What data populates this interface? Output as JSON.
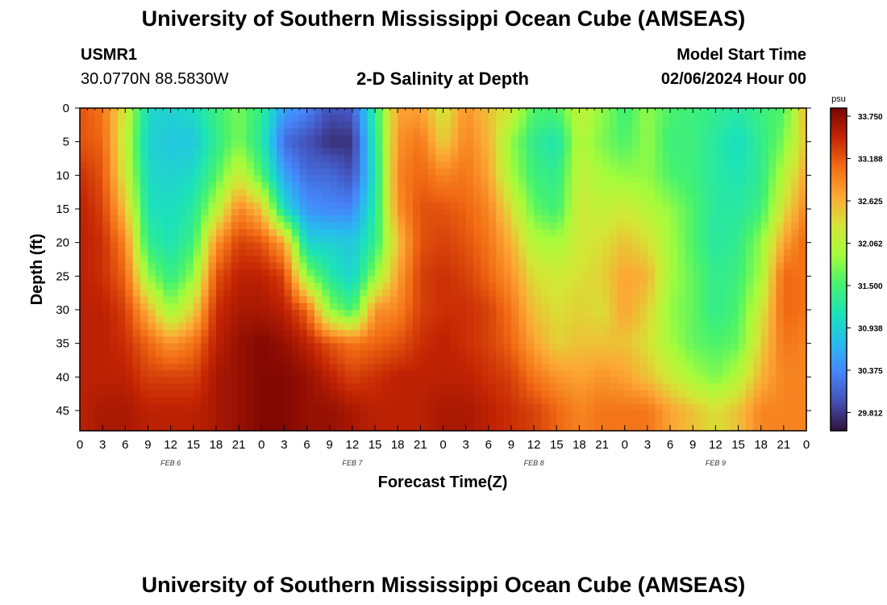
{
  "header": {
    "title": "University of Southern Mississippi Ocean Cube (AMSEAS)",
    "station_id": "USMR1",
    "coords": "30.0770N  88.5830W",
    "plot_title": "2-D Salinity at Depth",
    "model_start_label": "Model Start Time",
    "model_start_value": "02/06/2024 Hour 00"
  },
  "footer": {
    "title": "University of Southern Mississippi Ocean Cube (AMSEAS)"
  },
  "colorbar": {
    "unit": "psu",
    "labels": [
      "33.750",
      "33.188",
      "32.625",
      "32.062",
      "31.500",
      "30.938",
      "30.375",
      "29.812"
    ],
    "stops": [
      "#7a0403",
      "#c42503",
      "#f26c14",
      "#fca835",
      "#d5e536",
      "#a4fc3b",
      "#45f26e",
      "#1ce3b7",
      "#27bcee",
      "#4686fb",
      "#4350b7",
      "#30123b"
    ]
  },
  "chart_data": {
    "type": "heatmap",
    "title": "2-D Salinity at Depth",
    "xlabel": "Forecast Time(Z)",
    "ylabel": "Depth (ft)",
    "x_hours": [
      0,
      3,
      6,
      9,
      12,
      15,
      18,
      21,
      24,
      27,
      30,
      33,
      36,
      39,
      42,
      45,
      48,
      51,
      54,
      57,
      60,
      63,
      66,
      69,
      72,
      75,
      78,
      81,
      84,
      87,
      90,
      93,
      96
    ],
    "x_tick_labels": [
      "0",
      "3",
      "6",
      "9",
      "12",
      "15",
      "18",
      "21",
      "0",
      "3",
      "6",
      "9",
      "12",
      "15",
      "18",
      "21",
      "0",
      "3",
      "6",
      "9",
      "12",
      "15",
      "18",
      "21",
      "0",
      "3",
      "6",
      "9",
      "12",
      "15",
      "18",
      "21",
      "0"
    ],
    "date_labels": [
      {
        "hour": 12,
        "text": "FEB 6"
      },
      {
        "hour": 36,
        "text": "FEB 7"
      },
      {
        "hour": 60,
        "text": "FEB 8"
      },
      {
        "hour": 84,
        "text": "FEB 9"
      }
    ],
    "y_depths_ft": [
      0,
      5,
      10,
      15,
      20,
      25,
      30,
      35,
      40,
      45
    ],
    "y_tick_labels": [
      "0",
      "5",
      "10",
      "15",
      "20",
      "25",
      "30",
      "35",
      "40",
      "45"
    ],
    "ylim": [
      0,
      48
    ],
    "xlim": [
      0,
      96
    ],
    "vmin": 29.6,
    "vmax": 33.95,
    "colorbar_label": "psu",
    "values": [
      [
        33.3,
        33.3,
        33.5,
        33.6,
        33.6,
        33.6,
        33.6,
        33.6,
        33.6,
        33.6
      ],
      [
        33.1,
        33.2,
        33.3,
        33.4,
        33.5,
        33.5,
        33.6,
        33.6,
        33.6,
        33.7
      ],
      [
        32.3,
        32.2,
        32.3,
        32.6,
        33.0,
        33.2,
        33.4,
        33.5,
        33.6,
        33.7
      ],
      [
        31.1,
        31.0,
        31.1,
        31.2,
        31.4,
        31.9,
        32.7,
        33.2,
        33.4,
        33.6
      ],
      [
        31.0,
        30.9,
        31.0,
        31.1,
        31.2,
        31.4,
        31.9,
        32.9,
        33.4,
        33.6
      ],
      [
        31.1,
        30.9,
        31.1,
        31.3,
        31.5,
        31.9,
        32.5,
        33.1,
        33.4,
        33.6
      ],
      [
        31.5,
        31.4,
        31.6,
        32.1,
        32.9,
        33.3,
        33.5,
        33.6,
        33.7,
        33.7
      ],
      [
        31.8,
        31.8,
        32.3,
        33.0,
        33.4,
        33.6,
        33.7,
        33.8,
        33.8,
        33.8
      ],
      [
        31.4,
        31.3,
        31.6,
        32.6,
        33.3,
        33.6,
        33.7,
        33.9,
        33.9,
        33.9
      ],
      [
        30.6,
        30.2,
        30.6,
        31.1,
        32.8,
        33.4,
        33.6,
        33.8,
        33.9,
        33.9
      ],
      [
        30.4,
        30.0,
        30.2,
        30.5,
        31.0,
        31.9,
        33.2,
        33.6,
        33.8,
        33.8
      ],
      [
        30.0,
        29.8,
        30.2,
        30.4,
        31.0,
        31.3,
        31.9,
        33.3,
        33.6,
        33.8
      ],
      [
        30.1,
        29.8,
        30.0,
        30.4,
        30.9,
        31.0,
        31.5,
        33.1,
        33.4,
        33.7
      ],
      [
        31.4,
        31.3,
        31.2,
        31.3,
        31.4,
        31.9,
        32.9,
        33.2,
        33.5,
        33.6
      ],
      [
        32.8,
        32.9,
        33.0,
        32.9,
        32.6,
        32.8,
        33.0,
        33.3,
        33.6,
        33.6
      ],
      [
        32.8,
        33.1,
        33.2,
        33.3,
        33.3,
        33.4,
        33.4,
        33.5,
        33.6,
        33.6
      ],
      [
        32.3,
        32.5,
        33.0,
        33.3,
        33.4,
        33.5,
        33.5,
        33.6,
        33.6,
        33.7
      ],
      [
        32.9,
        33.0,
        33.1,
        33.2,
        33.3,
        33.4,
        33.5,
        33.5,
        33.6,
        33.7
      ],
      [
        32.6,
        32.7,
        32.8,
        33.0,
        33.1,
        33.2,
        33.4,
        33.4,
        33.5,
        33.6
      ],
      [
        32.3,
        31.9,
        32.0,
        32.4,
        32.7,
        32.9,
        33.1,
        33.2,
        33.4,
        33.5
      ],
      [
        31.6,
        31.4,
        31.5,
        31.7,
        32.1,
        32.4,
        32.6,
        32.8,
        33.1,
        33.4
      ],
      [
        31.6,
        31.2,
        31.4,
        31.5,
        32.0,
        32.3,
        32.4,
        32.5,
        32.9,
        33.2
      ],
      [
        32.2,
        32.1,
        32.2,
        32.3,
        32.3,
        32.4,
        32.5,
        32.6,
        32.8,
        33.0
      ],
      [
        31.9,
        31.8,
        32.0,
        32.2,
        32.4,
        32.5,
        32.4,
        32.6,
        32.9,
        33.1
      ],
      [
        31.5,
        31.6,
        31.9,
        32.3,
        32.6,
        32.8,
        32.8,
        32.6,
        32.8,
        33.1
      ],
      [
        31.9,
        31.9,
        31.9,
        32.1,
        32.4,
        32.7,
        32.5,
        32.4,
        32.6,
        33.1
      ],
      [
        31.6,
        31.5,
        31.6,
        31.9,
        32.0,
        32.0,
        31.9,
        32.0,
        32.3,
        32.8
      ],
      [
        31.5,
        31.5,
        31.5,
        31.6,
        31.6,
        31.7,
        31.7,
        31.7,
        32.0,
        32.6
      ],
      [
        31.4,
        31.3,
        31.3,
        31.3,
        31.3,
        31.4,
        31.4,
        31.6,
        31.8,
        32.4
      ],
      [
        31.3,
        31.1,
        31.2,
        31.3,
        31.4,
        31.5,
        31.6,
        31.7,
        32.1,
        32.6
      ],
      [
        31.5,
        31.4,
        31.4,
        31.5,
        31.9,
        32.0,
        32.3,
        32.5,
        32.7,
        33.0
      ],
      [
        31.6,
        31.8,
        32.1,
        32.4,
        32.8,
        33.2,
        33.2,
        33.1,
        33.0,
        33.0
      ],
      [
        32.7,
        32.6,
        32.8,
        33.0,
        33.2,
        33.1,
        33.1,
        33.0,
        33.0,
        33.0
      ]
    ]
  }
}
